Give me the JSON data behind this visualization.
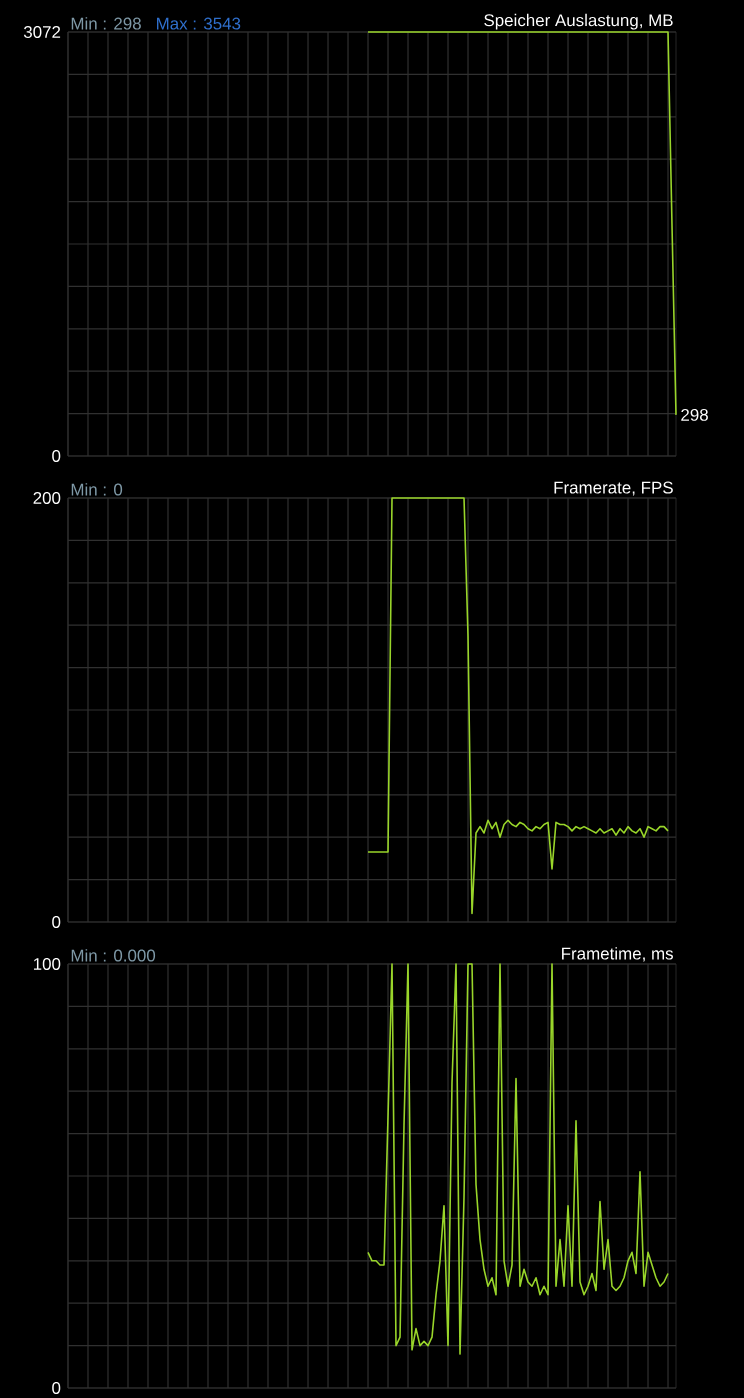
{
  "chart_data": [
    {
      "type": "line",
      "title": "Speicher Auslastung, MB",
      "annotations": [
        "Min : 298",
        "Max : 3543"
      ],
      "value_labels": [
        null,
        null,
        null,
        null,
        null,
        null,
        null,
        null,
        null,
        null,
        null,
        null,
        null,
        null,
        null,
        null,
        null,
        null,
        null,
        null,
        null,
        null,
        null,
        null,
        null,
        null,
        null,
        null,
        null,
        null,
        null,
        null,
        null,
        null,
        null,
        null,
        null,
        null,
        null,
        null,
        null,
        null,
        null,
        null,
        null,
        null,
        null,
        null,
        null,
        null,
        null,
        null,
        null,
        null,
        null,
        null,
        null,
        null,
        null,
        null,
        null,
        null,
        null,
        null,
        null,
        null,
        null,
        null,
        null,
        null,
        null,
        null,
        null,
        null,
        null,
        null,
        null,
        null,
        null,
        null,
        null,
        null,
        null,
        null,
        null,
        null,
        null,
        null,
        null,
        null,
        null,
        null,
        null,
        null,
        null,
        null,
        null,
        null,
        null,
        null,
        null,
        null,
        null,
        null,
        null,
        null,
        null,
        null,
        null,
        null,
        null,
        null,
        null,
        null,
        null,
        null,
        null,
        null,
        null,
        null,
        null,
        null,
        null,
        null,
        null,
        null,
        null,
        null,
        null,
        null,
        null,
        null,
        null,
        null,
        null,
        null,
        null,
        null,
        null,
        null,
        null,
        null,
        null,
        null,
        null,
        null,
        null,
        null,
        null,
        null,
        null,
        null,
        "298"
      ],
      "color": "#99d52a",
      "grid": true,
      "tick_labels": "y",
      "ylim": [
        0,
        3072
      ],
      "yticks": [
        0,
        {
          "value": 307.2,
          "label": null
        },
        {
          "value": 614.4,
          "label": null
        },
        {
          "value": 921.6,
          "label": null
        },
        {
          "value": 1228.8,
          "label": null
        },
        {
          "value": 1536,
          "label": null
        },
        {
          "value": 1843.2,
          "label": null
        },
        {
          "value": 2150.4,
          "label": null
        },
        {
          "value": 2457.6,
          "label": null
        },
        {
          "value": 2764.8,
          "label": null
        },
        3072
      ],
      "categories": [
        null,
        null,
        null,
        null,
        null,
        null,
        null,
        null,
        null,
        null,
        null,
        null,
        null,
        null,
        null,
        null,
        null,
        null,
        null,
        null,
        null,
        null,
        null,
        null,
        null,
        null,
        null,
        null,
        null,
        null,
        null,
        null,
        null,
        null,
        null,
        null,
        null,
        null,
        null,
        null,
        null,
        null,
        null,
        null,
        null,
        null,
        null,
        null,
        null,
        null,
        null,
        null,
        null,
        null,
        null,
        null,
        null,
        null,
        null,
        null,
        null,
        null,
        null,
        null,
        null,
        null,
        null,
        null,
        null,
        null,
        null,
        null,
        null,
        null,
        null,
        null,
        null,
        null,
        null,
        null,
        null,
        null,
        null,
        null,
        null,
        null,
        null,
        null,
        null,
        null,
        null,
        null,
        null,
        null,
        null,
        null,
        null,
        null,
        null,
        null,
        null,
        null,
        null,
        null,
        null,
        null,
        null,
        null,
        null,
        null,
        null,
        null,
        null,
        null,
        null,
        null,
        null,
        null,
        null,
        null,
        null,
        null,
        null,
        null,
        null,
        null,
        null,
        null,
        null,
        null,
        null,
        null,
        null,
        null,
        null,
        null,
        null,
        null,
        null,
        null,
        null,
        null,
        null,
        null,
        null,
        null,
        null,
        null,
        null,
        null,
        null,
        null,
        null
      ],
      "values": [
        null,
        null,
        null,
        null,
        null,
        null,
        null,
        null,
        null,
        null,
        null,
        null,
        null,
        null,
        null,
        null,
        null,
        null,
        null,
        null,
        null,
        null,
        null,
        null,
        null,
        null,
        null,
        null,
        null,
        null,
        null,
        null,
        null,
        null,
        null,
        null,
        null,
        null,
        null,
        null,
        null,
        null,
        null,
        null,
        null,
        null,
        null,
        null,
        null,
        null,
        null,
        null,
        null,
        null,
        null,
        null,
        null,
        null,
        null,
        null,
        null,
        null,
        null,
        null,
        null,
        null,
        null,
        null,
        null,
        null,
        null,
        null,
        null,
        null,
        null,
        3072,
        3072,
        3072,
        3072,
        3072,
        3072,
        3072,
        3072,
        3072,
        3072,
        3072,
        3072,
        3072,
        3072,
        3072,
        3072,
        3072,
        3072,
        3072,
        3072,
        3072,
        3072,
        3072,
        3072,
        3072,
        3072,
        3072,
        3072,
        3072,
        3072,
        3072,
        3072,
        3072,
        3072,
        3072,
        3072,
        3072,
        3072,
        3072,
        3072,
        3072,
        3072,
        3072,
        3072,
        3072,
        3072,
        3072,
        3072,
        3072,
        3072,
        3072,
        3072,
        3072,
        3072,
        3072,
        3072,
        3072,
        3072,
        3072,
        3072,
        3072,
        3072,
        3072,
        3072,
        3072,
        3072,
        3072,
        3072,
        3072,
        3072,
        3072,
        3072,
        3072,
        3072,
        3072,
        3072,
        1669,
        298
      ]
    },
    {
      "type": "line",
      "title": "Framerate, FPS",
      "annotations": [
        "Min : 0"
      ],
      "color": "#99d52a",
      "grid": true,
      "tick_labels": "y",
      "ylim": [
        0,
        200
      ],
      "yticks": [
        0,
        {
          "value": 20,
          "label": null
        },
        {
          "value": 40,
          "label": null
        },
        {
          "value": 60,
          "label": null
        },
        {
          "value": 80,
          "label": null
        },
        {
          "value": 100,
          "label": null
        },
        {
          "value": 120,
          "label": null
        },
        {
          "value": 140,
          "label": null
        },
        {
          "value": 160,
          "label": null
        },
        {
          "value": 180,
          "label": null
        },
        200
      ],
      "categories": [
        null,
        null,
        null,
        null,
        null,
        null,
        null,
        null,
        null,
        null,
        null,
        null,
        null,
        null,
        null,
        null,
        null,
        null,
        null,
        null,
        null,
        null,
        null,
        null,
        null,
        null,
        null,
        null,
        null,
        null,
        null,
        null,
        null,
        null,
        null,
        null,
        null,
        null,
        null,
        null,
        null,
        null,
        null,
        null,
        null,
        null,
        null,
        null,
        null,
        null,
        null,
        null,
        null,
        null,
        null,
        null,
        null,
        null,
        null,
        null,
        null,
        null,
        null,
        null,
        null,
        null,
        null,
        null,
        null,
        null,
        null,
        null,
        null,
        null,
        null,
        null,
        null,
        null,
        null,
        null,
        null,
        null,
        null,
        null,
        null,
        null,
        null,
        null,
        null,
        null,
        null,
        null,
        null,
        null,
        null,
        null,
        null,
        null,
        null,
        null,
        null,
        null,
        null,
        null,
        null,
        null,
        null,
        null,
        null,
        null,
        null,
        null,
        null,
        null,
        null,
        null,
        null,
        null,
        null,
        null,
        null,
        null,
        null,
        null,
        null,
        null,
        null,
        null,
        null,
        null,
        null,
        null,
        null,
        null,
        null,
        null,
        null,
        null,
        null,
        null,
        null,
        null,
        null,
        null,
        null,
        null,
        null,
        null,
        null,
        null,
        null,
        null,
        null
      ],
      "values": [
        null,
        null,
        null,
        null,
        null,
        null,
        null,
        null,
        null,
        null,
        null,
        null,
        null,
        null,
        null,
        null,
        null,
        null,
        null,
        null,
        null,
        null,
        null,
        null,
        null,
        null,
        null,
        null,
        null,
        null,
        null,
        null,
        null,
        null,
        null,
        null,
        null,
        null,
        null,
        null,
        null,
        null,
        null,
        null,
        null,
        null,
        null,
        null,
        null,
        null,
        null,
        null,
        null,
        null,
        null,
        null,
        null,
        null,
        null,
        null,
        null,
        null,
        null,
        null,
        null,
        null,
        null,
        null,
        null,
        null,
        null,
        null,
        null,
        null,
        null,
        33,
        33,
        33,
        33,
        33,
        33,
        200,
        200,
        200,
        200,
        200,
        200,
        200,
        200,
        200,
        200,
        200,
        200,
        200,
        200,
        200,
        200,
        200,
        200,
        200,
        135,
        4,
        42,
        45,
        42,
        48,
        44,
        47,
        40,
        46,
        48,
        46,
        45,
        47,
        46,
        44,
        43,
        45,
        44,
        46,
        47,
        25,
        47,
        46,
        46,
        45,
        43,
        45,
        44,
        45,
        44,
        43,
        42,
        44,
        42,
        43,
        44,
        41,
        44,
        42,
        45,
        43,
        42,
        44,
        40,
        45,
        44,
        43,
        45,
        45,
        43,
        null,
        null
      ]
    },
    {
      "type": "line",
      "title": "Frametime, ms",
      "annotations": [
        "Min : 0.000"
      ],
      "color": "#99d52a",
      "grid": true,
      "tick_labels": "y",
      "ylim": [
        0,
        100
      ],
      "yticks": [
        0,
        {
          "value": 10,
          "label": null
        },
        {
          "value": 20,
          "label": null
        },
        {
          "value": 30,
          "label": null
        },
        {
          "value": 40,
          "label": null
        },
        {
          "value": 50,
          "label": null
        },
        {
          "value": 60,
          "label": null
        },
        {
          "value": 70,
          "label": null
        },
        {
          "value": 80,
          "label": null
        },
        {
          "value": 90,
          "label": null
        },
        100
      ],
      "categories": [
        null,
        null,
        null,
        null,
        null,
        null,
        null,
        null,
        null,
        null,
        null,
        null,
        null,
        null,
        null,
        null,
        null,
        null,
        null,
        null,
        null,
        null,
        null,
        null,
        null,
        null,
        null,
        null,
        null,
        null,
        null,
        null,
        null,
        null,
        null,
        null,
        null,
        null,
        null,
        null,
        null,
        null,
        null,
        null,
        null,
        null,
        null,
        null,
        null,
        null,
        null,
        null,
        null,
        null,
        null,
        null,
        null,
        null,
        null,
        null,
        null,
        null,
        null,
        null,
        null,
        null,
        null,
        null,
        null,
        null,
        null,
        null,
        null,
        null,
        null,
        null,
        null,
        null,
        null,
        null,
        null,
        null,
        null,
        null,
        null,
        null,
        null,
        null,
        null,
        null,
        null,
        null,
        null,
        null,
        null,
        null,
        null,
        null,
        null,
        null,
        null,
        null,
        null,
        null,
        null,
        null,
        null,
        null,
        null,
        null,
        null,
        null,
        null,
        null,
        null,
        null,
        null,
        null,
        null,
        null,
        null,
        null,
        null,
        null,
        null,
        null,
        null,
        null,
        null,
        null,
        null,
        null,
        null,
        null,
        null,
        null,
        null,
        null,
        null,
        null,
        null,
        null,
        null,
        null,
        null,
        null,
        null,
        null,
        null,
        null,
        null,
        null,
        null
      ],
      "values": [
        null,
        null,
        null,
        null,
        null,
        null,
        null,
        null,
        null,
        null,
        null,
        null,
        null,
        null,
        null,
        null,
        null,
        null,
        null,
        null,
        null,
        null,
        null,
        null,
        null,
        null,
        null,
        null,
        null,
        null,
        null,
        null,
        null,
        null,
        null,
        null,
        null,
        null,
        null,
        null,
        null,
        null,
        null,
        null,
        null,
        null,
        null,
        null,
        null,
        null,
        null,
        null,
        null,
        null,
        null,
        null,
        null,
        null,
        null,
        null,
        null,
        null,
        null,
        null,
        null,
        null,
        null,
        null,
        null,
        null,
        null,
        null,
        null,
        null,
        null,
        32,
        30,
        30,
        29,
        29,
        64,
        100,
        10,
        12,
        62,
        100,
        9,
        14,
        10,
        11,
        10,
        12,
        22,
        30,
        43,
        10,
        72,
        100,
        8,
        45,
        100,
        100,
        48,
        35,
        28,
        24,
        26,
        22,
        100,
        30,
        24,
        29,
        73,
        24,
        28,
        25,
        24,
        26,
        22,
        24,
        22,
        100,
        24,
        35,
        24,
        43,
        24,
        63,
        25,
        22,
        24,
        27,
        23,
        44,
        28,
        35,
        24,
        23,
        24,
        26,
        30,
        32,
        27,
        51,
        24,
        32,
        29,
        26,
        24,
        25,
        27,
        null,
        null
      ]
    }
  ]
}
